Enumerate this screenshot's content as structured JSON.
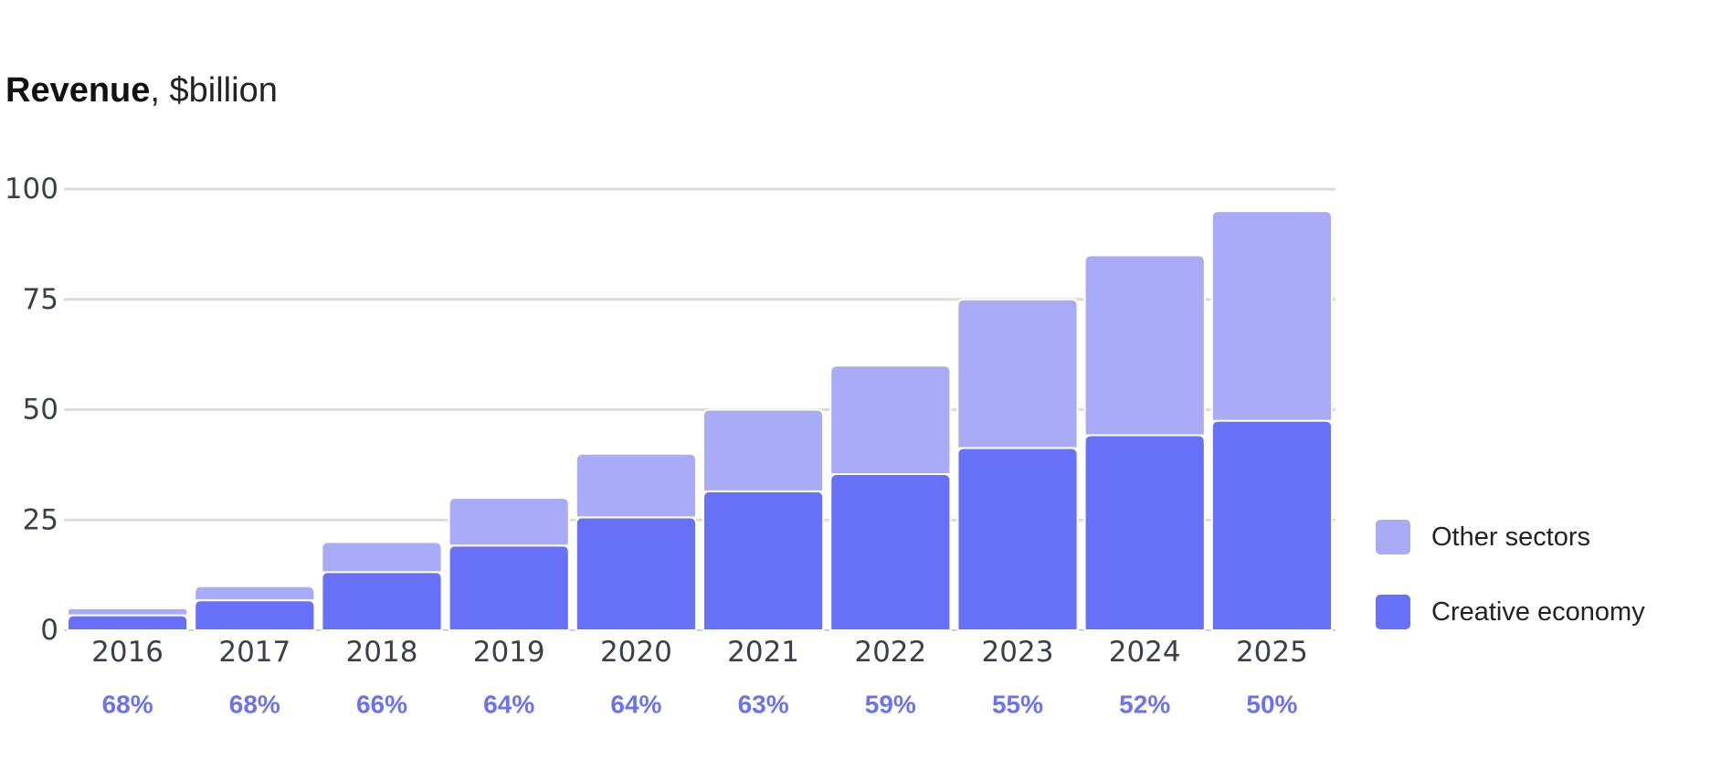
{
  "chart_data": {
    "type": "bar",
    "stacked": true,
    "title": "Revenue",
    "title_unit": "$billion",
    "categories": [
      "2016",
      "2017",
      "2018",
      "2019",
      "2020",
      "2021",
      "2022",
      "2023",
      "2024",
      "2025"
    ],
    "series": [
      {
        "name": "Creative economy",
        "color": "#6771f8",
        "values": [
          3.4,
          6.8,
          13.2,
          19.2,
          25.6,
          31.5,
          35.4,
          41.3,
          44.2,
          47.5
        ]
      },
      {
        "name": "Other sectors",
        "color": "#aaabf6",
        "values": [
          1.6,
          3.2,
          6.8,
          10.8,
          14.4,
          18.5,
          24.6,
          33.7,
          40.8,
          47.5
        ]
      }
    ],
    "share_labels": [
      "68%",
      "68%",
      "66%",
      "64%",
      "64%",
      "63%",
      "59%",
      "55%",
      "52%",
      "50%"
    ],
    "share_color": "#6b72f0",
    "ylim": [
      0,
      100
    ],
    "yticks": [
      0,
      25,
      50,
      75,
      100
    ],
    "ytick_labels": [
      "0",
      "25",
      "50",
      "75",
      "100"
    ],
    "grid": true,
    "legend": {
      "placement": "right",
      "entries": [
        "Other sectors",
        "Creative economy"
      ]
    }
  }
}
